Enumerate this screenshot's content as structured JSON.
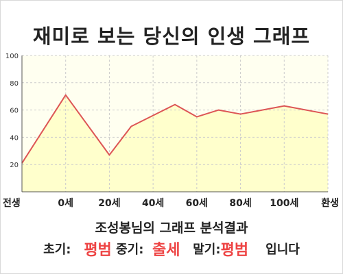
{
  "title": "재미로 보는 당신의 인생 그래프",
  "chart_data": {
    "type": "area",
    "x_categories": [
      "전생",
      "0세",
      "20세",
      "40세",
      "60세",
      "80세",
      "100세",
      "환생"
    ],
    "points": [
      {
        "x": 0,
        "y": 21
      },
      {
        "x": 1,
        "y": 71
      },
      {
        "x": 2,
        "y": 27
      },
      {
        "x": 2.5,
        "y": 48
      },
      {
        "x": 3.5,
        "y": 64
      },
      {
        "x": 4,
        "y": 55
      },
      {
        "x": 4.5,
        "y": 60
      },
      {
        "x": 5,
        "y": 57
      },
      {
        "x": 6,
        "y": 63
      },
      {
        "x": 7,
        "y": 57
      }
    ],
    "y_ticks": [
      20,
      40,
      60,
      80,
      100
    ],
    "ylim": [
      0,
      100
    ],
    "grid": true,
    "colors": {
      "line": "#dd5555",
      "fill": "#ffffcc",
      "grid": "#cccccc"
    }
  },
  "result": {
    "heading": "조성봉님의 그래프 분석결과",
    "early_label": "초기:",
    "early_value": "평범",
    "mid_label": "중기:",
    "mid_value": "출세",
    "late_label": "말기:",
    "late_value": "평범",
    "suffix": "입니다"
  }
}
